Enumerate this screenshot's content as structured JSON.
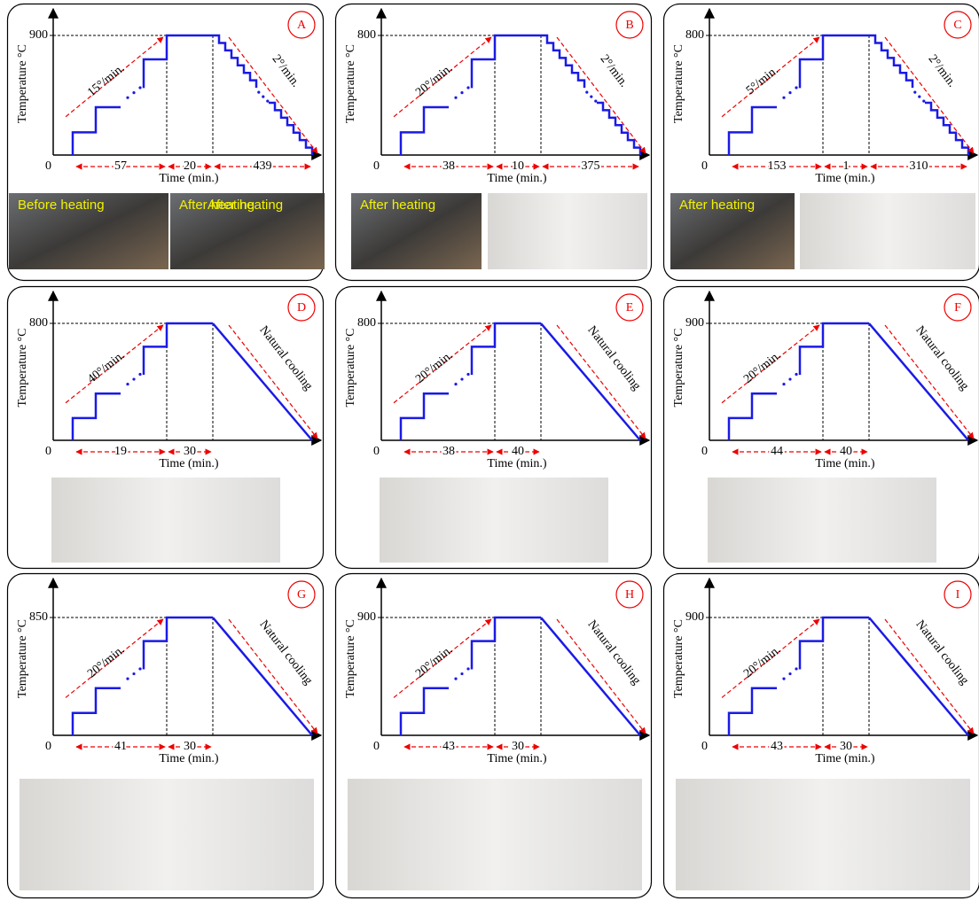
{
  "panels": [
    {
      "letter": "A",
      "peak": "900",
      "origin": "0",
      "y_label": "Temperature °C",
      "x_label": "Time (min.)",
      "heating_rate": "15°/min.",
      "cooling": "2°/min.",
      "durations": [
        "57",
        "20",
        "439"
      ],
      "captions": [
        "Before heating",
        "After heating"
      ]
    },
    {
      "letter": "B",
      "peak": "800",
      "origin": "0",
      "y_label": "Temperature °C",
      "x_label": "Time (min.)",
      "heating_rate": "20°/min.",
      "cooling": "2°/min.",
      "durations": [
        "38",
        "10",
        "375"
      ],
      "captions": [
        "After heating"
      ]
    },
    {
      "letter": "C",
      "peak": "800",
      "origin": "0",
      "y_label": "Temperature °C",
      "x_label": "Time (min.)",
      "heating_rate": "5°/min.",
      "cooling": "2°/min.",
      "durations": [
        "153",
        "1",
        "310"
      ],
      "captions": [
        "After heating"
      ]
    },
    {
      "letter": "D",
      "peak": "800",
      "origin": "0",
      "y_label": "Temperature °C",
      "x_label": "Time (min.)",
      "heating_rate": "40°/min.",
      "cooling": "Natural cooling",
      "durations": [
        "19",
        "30"
      ]
    },
    {
      "letter": "E",
      "peak": "800",
      "origin": "0",
      "y_label": "Temperature °C",
      "x_label": "Time (min.)",
      "heating_rate": "20°/min.",
      "cooling": "Natural cooling",
      "durations": [
        "38",
        "40"
      ]
    },
    {
      "letter": "F",
      "peak": "900",
      "origin": "0",
      "y_label": "Temperature °C",
      "x_label": "Time (min.)",
      "heating_rate": "20°/min.",
      "cooling": "Natural cooling",
      "durations": [
        "44",
        "40"
      ]
    },
    {
      "letter": "G",
      "peak": "850",
      "origin": "0",
      "y_label": "Temperature °C",
      "x_label": "Time (min.)",
      "heating_rate": "20°/min.",
      "cooling": "Natural cooling",
      "durations": [
        "41",
        "30"
      ]
    },
    {
      "letter": "H",
      "peak": "900",
      "origin": "0",
      "y_label": "Temperature °C",
      "x_label": "Time (min.)",
      "heating_rate": "20°/min.",
      "cooling": "Natural cooling",
      "durations": [
        "43",
        "30"
      ]
    },
    {
      "letter": "I",
      "peak": "900",
      "origin": "0",
      "y_label": "Temperature °C",
      "x_label": "Time (min.)",
      "heating_rate": "20°/min.",
      "cooling": "Natural cooling",
      "durations": [
        "43",
        "30"
      ]
    }
  ]
}
